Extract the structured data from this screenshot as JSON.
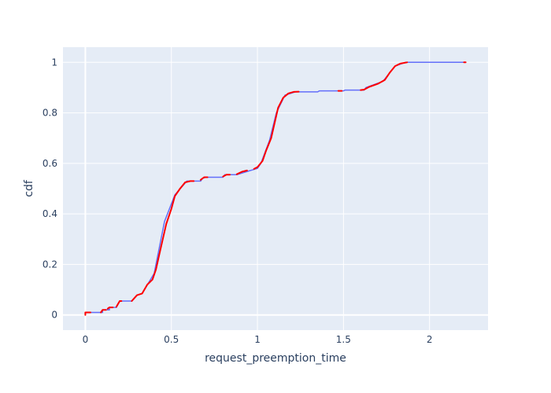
{
  "chart_data": {
    "type": "line",
    "xlabel": "request_preemption_time",
    "ylabel": "cdf",
    "xlim": [
      -0.13,
      2.34
    ],
    "ylim": [
      -0.06,
      1.06
    ],
    "xticks": [
      0,
      0.5,
      1,
      1.5,
      2
    ],
    "xtick_labels": [
      "0",
      "0.5",
      "1",
      "1.5",
      "2"
    ],
    "yticks": [
      0,
      0.2,
      0.4,
      0.6,
      0.8,
      1
    ],
    "ytick_labels": [
      "0",
      "0.2",
      "0.4",
      "0.6",
      "0.8",
      "1"
    ],
    "grid": true,
    "plot_background": "#e5ecf6",
    "series": [
      {
        "color": "#636efa",
        "points": [
          [
            0,
            0
          ],
          [
            0.0,
            0.01
          ],
          [
            0.1,
            0.01
          ],
          [
            0.1,
            0.02
          ],
          [
            0.14,
            0.02
          ],
          [
            0.14,
            0.03
          ],
          [
            0.18,
            0.03
          ],
          [
            0.2,
            0.055
          ],
          [
            0.27,
            0.055
          ],
          [
            0.3,
            0.078
          ],
          [
            0.33,
            0.085
          ],
          [
            0.4,
            0.165
          ],
          [
            0.46,
            0.37
          ],
          [
            0.52,
            0.475
          ],
          [
            0.59,
            0.53
          ],
          [
            0.67,
            0.53
          ],
          [
            0.68,
            0.54
          ],
          [
            0.7,
            0.545
          ],
          [
            0.8,
            0.545
          ],
          [
            0.81,
            0.555
          ],
          [
            0.88,
            0.555
          ],
          [
            0.95,
            0.57
          ],
          [
            1.0,
            0.58
          ],
          [
            1.02,
            0.6
          ],
          [
            1.07,
            0.69
          ],
          [
            1.11,
            0.8
          ],
          [
            1.16,
            0.87
          ],
          [
            1.22,
            0.883
          ],
          [
            1.35,
            0.883
          ],
          [
            1.36,
            0.887
          ],
          [
            1.5,
            0.887
          ],
          [
            1.51,
            0.89
          ],
          [
            1.62,
            0.89
          ],
          [
            1.63,
            0.9
          ],
          [
            1.73,
            0.925
          ],
          [
            1.8,
            0.985
          ],
          [
            1.86,
            1.0
          ],
          [
            2.21,
            1.0
          ]
        ]
      },
      {
        "color": "#ff0000",
        "segments": [
          [
            [
              0,
              0
            ],
            [
              0.0,
              0.01
            ],
            [
              0.03,
              0.01
            ]
          ],
          [
            [
              0.09,
              0.01
            ],
            [
              0.1,
              0.02
            ],
            [
              0.12,
              0.02
            ]
          ],
          [
            [
              0.13,
              0.025
            ],
            [
              0.14,
              0.03
            ],
            [
              0.16,
              0.03
            ]
          ],
          [
            [
              0.18,
              0.032
            ],
            [
              0.2,
              0.055
            ],
            [
              0.21,
              0.055
            ]
          ],
          [
            [
              0.27,
              0.055
            ],
            [
              0.3,
              0.078
            ],
            [
              0.33,
              0.085
            ],
            [
              0.36,
              0.12
            ],
            [
              0.39,
              0.14
            ],
            [
              0.41,
              0.18
            ],
            [
              0.43,
              0.24
            ],
            [
              0.45,
              0.3
            ],
            [
              0.47,
              0.36
            ],
            [
              0.5,
              0.42
            ],
            [
              0.52,
              0.47
            ],
            [
              0.55,
              0.5
            ],
            [
              0.58,
              0.525
            ],
            [
              0.61,
              0.53
            ],
            [
              0.63,
              0.53
            ]
          ],
          [
            [
              0.67,
              0.535
            ],
            [
              0.69,
              0.545
            ],
            [
              0.71,
              0.545
            ]
          ],
          [
            [
              0.8,
              0.548
            ],
            [
              0.82,
              0.555
            ],
            [
              0.84,
              0.555
            ]
          ],
          [
            [
              0.88,
              0.557
            ],
            [
              0.91,
              0.567
            ],
            [
              0.94,
              0.572
            ]
          ],
          [
            [
              0.98,
              0.578
            ],
            [
              1.0,
              0.585
            ],
            [
              1.03,
              0.61
            ],
            [
              1.05,
              0.65
            ],
            [
              1.08,
              0.7
            ],
            [
              1.1,
              0.76
            ],
            [
              1.12,
              0.82
            ],
            [
              1.15,
              0.86
            ],
            [
              1.18,
              0.877
            ],
            [
              1.21,
              0.883
            ],
            [
              1.24,
              0.884
            ]
          ],
          [
            [
              1.47,
              0.887
            ],
            [
              1.49,
              0.887
            ]
          ],
          [
            [
              1.6,
              0.89
            ],
            [
              1.62,
              0.892
            ],
            [
              1.65,
              0.903
            ],
            [
              1.7,
              0.915
            ],
            [
              1.74,
              0.93
            ],
            [
              1.77,
              0.96
            ],
            [
              1.8,
              0.985
            ],
            [
              1.83,
              0.995
            ],
            [
              1.87,
              1.0
            ]
          ],
          [
            [
              2.2,
              1.0
            ],
            [
              2.21,
              1.0
            ]
          ]
        ]
      }
    ]
  }
}
